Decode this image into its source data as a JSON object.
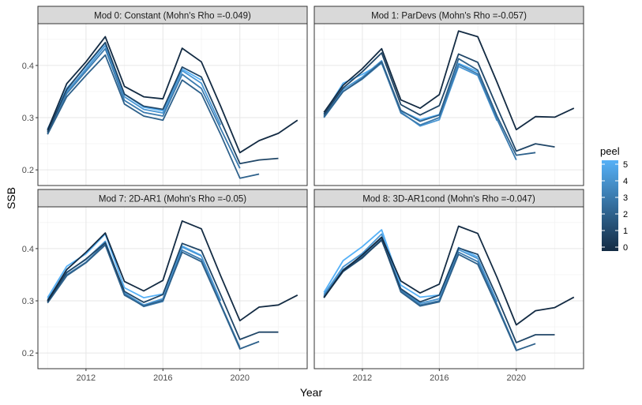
{
  "chart_data": {
    "type": "line",
    "xlabel": "Year",
    "ylabel": "SSB",
    "x_ticks": [
      2012,
      2016,
      2020
    ],
    "y_ticks": [
      0.2,
      0.3,
      0.4
    ],
    "xlim": [
      2009.5,
      2023.5
    ],
    "ylim": [
      0.17,
      0.48
    ],
    "grid": true,
    "legend": {
      "title": "peel",
      "position": "right",
      "ticks": [
        0,
        1,
        2,
        3,
        4,
        5
      ],
      "color_low": "#132B43",
      "color_high": "#56B1F7"
    },
    "panels": [
      {
        "title": "Mod 0: Constant (Mohn's Rho =-0.049)",
        "series": [
          {
            "peel": 0,
            "x": [
              2010,
              2011,
              2012,
              2013,
              2014,
              2015,
              2016,
              2017,
              2018,
              2019,
              2020,
              2021,
              2022,
              2023
            ],
            "y": [
              0.276,
              0.365,
              0.407,
              0.455,
              0.36,
              0.34,
              0.336,
              0.433,
              0.407,
              0.322,
              0.233,
              0.256,
              0.27,
              0.295
            ]
          },
          {
            "peel": 1,
            "x": [
              2010,
              2011,
              2012,
              2013,
              2014,
              2015,
              2016,
              2017,
              2018,
              2019,
              2020,
              2021,
              2022
            ],
            "y": [
              0.272,
              0.354,
              0.4,
              0.444,
              0.345,
              0.322,
              0.316,
              0.397,
              0.378,
              0.295,
              0.212,
              0.219,
              0.222
            ]
          },
          {
            "peel": 2,
            "x": [
              2010,
              2011,
              2012,
              2013,
              2014,
              2015,
              2016,
              2017,
              2018,
              2019,
              2020,
              2021
            ],
            "y": [
              0.268,
              0.34,
              0.381,
              0.42,
              0.326,
              0.303,
              0.295,
              0.372,
              0.346,
              0.268,
              0.184,
              0.192
            ]
          },
          {
            "peel": 3,
            "x": [
              2010,
              2011,
              2012,
              2013,
              2014,
              2015,
              2016,
              2017,
              2018,
              2019,
              2020
            ],
            "y": [
              0.27,
              0.346,
              0.389,
              0.432,
              0.333,
              0.31,
              0.303,
              0.383,
              0.356,
              0.279,
              0.203
            ]
          },
          {
            "peel": 4,
            "x": [
              2010,
              2011,
              2012,
              2013,
              2014,
              2015,
              2016,
              2017,
              2018,
              2019
            ],
            "y": [
              0.274,
              0.35,
              0.393,
              0.438,
              0.34,
              0.316,
              0.309,
              0.39,
              0.366,
              0.286
            ]
          },
          {
            "peel": 5,
            "x": [
              2010,
              2011,
              2012,
              2013,
              2014,
              2015,
              2016,
              2017,
              2018
            ],
            "y": [
              0.278,
              0.356,
              0.398,
              0.443,
              0.345,
              0.32,
              0.313,
              0.393,
              0.372
            ]
          }
        ]
      },
      {
        "title": "Mod 1: ParDevs (Mohn's Rho =-0.057)",
        "series": [
          {
            "peel": 0,
            "x": [
              2010,
              2011,
              2012,
              2013,
              2014,
              2015,
              2016,
              2017,
              2018,
              2019,
              2020,
              2021,
              2022,
              2023
            ],
            "y": [
              0.31,
              0.362,
              0.394,
              0.432,
              0.334,
              0.318,
              0.344,
              0.466,
              0.455,
              0.368,
              0.277,
              0.302,
              0.301,
              0.318
            ]
          },
          {
            "peel": 1,
            "x": [
              2010,
              2011,
              2012,
              2013,
              2014,
              2015,
              2016,
              2017,
              2018,
              2019,
              2020,
              2021,
              2022
            ],
            "y": [
              0.306,
              0.357,
              0.388,
              0.424,
              0.325,
              0.305,
              0.323,
              0.422,
              0.406,
              0.32,
              0.236,
              0.25,
              0.244
            ]
          },
          {
            "peel": 2,
            "x": [
              2010,
              2011,
              2012,
              2013,
              2014,
              2015,
              2016,
              2017,
              2018,
              2019,
              2020,
              2021
            ],
            "y": [
              0.302,
              0.35,
              0.375,
              0.407,
              0.314,
              0.293,
              0.305,
              0.413,
              0.391,
              0.303,
              0.228,
              0.233
            ]
          },
          {
            "peel": 3,
            "x": [
              2010,
              2011,
              2012,
              2013,
              2014,
              2015,
              2016,
              2017,
              2018,
              2019,
              2020
            ],
            "y": [
              0.3,
              0.35,
              0.374,
              0.405,
              0.309,
              0.286,
              0.3,
              0.402,
              0.384,
              0.297,
              0.219
            ]
          },
          {
            "peel": 4,
            "x": [
              2010,
              2011,
              2012,
              2013,
              2014,
              2015,
              2016,
              2017,
              2018,
              2019
            ],
            "y": [
              0.303,
              0.354,
              0.378,
              0.409,
              0.311,
              0.284,
              0.296,
              0.398,
              0.381,
              0.294
            ]
          },
          {
            "peel": 5,
            "x": [
              2010,
              2011,
              2012,
              2013,
              2014,
              2015,
              2016,
              2017,
              2018
            ],
            "y": [
              0.307,
              0.366,
              0.383,
              0.404,
              0.313,
              0.296,
              0.306,
              0.404,
              0.388
            ]
          }
        ]
      },
      {
        "title": "Mod 7: 2D-AR1 (Mohn's Rho =-0.05)",
        "series": [
          {
            "peel": 0,
            "x": [
              2010,
              2011,
              2012,
              2013,
              2014,
              2015,
              2016,
              2017,
              2018,
              2019,
              2020,
              2021,
              2022,
              2023
            ],
            "y": [
              0.3,
              0.36,
              0.393,
              0.43,
              0.337,
              0.319,
              0.339,
              0.453,
              0.438,
              0.348,
              0.262,
              0.288,
              0.292,
              0.311
            ]
          },
          {
            "peel": 1,
            "x": [
              2010,
              2011,
              2012,
              2013,
              2014,
              2015,
              2016,
              2017,
              2018,
              2019,
              2020,
              2021,
              2022
            ],
            "y": [
              0.298,
              0.354,
              0.38,
              0.411,
              0.318,
              0.297,
              0.312,
              0.41,
              0.396,
              0.312,
              0.226,
              0.24,
              0.24
            ]
          },
          {
            "peel": 2,
            "x": [
              2010,
              2011,
              2012,
              2013,
              2014,
              2015,
              2016,
              2017,
              2018,
              2019,
              2020,
              2021
            ],
            "y": [
              0.296,
              0.348,
              0.373,
              0.407,
              0.311,
              0.29,
              0.301,
              0.393,
              0.375,
              0.292,
              0.208,
              0.222
            ]
          },
          {
            "peel": 3,
            "x": [
              2010,
              2011,
              2012,
              2013,
              2014,
              2015,
              2016,
              2017,
              2018,
              2019,
              2020
            ],
            "y": [
              0.298,
              0.35,
              0.374,
              0.41,
              0.313,
              0.289,
              0.299,
              0.397,
              0.379,
              0.294,
              0.211
            ]
          },
          {
            "peel": 4,
            "x": [
              2010,
              2011,
              2012,
              2013,
              2014,
              2015,
              2016,
              2017,
              2018,
              2019
            ],
            "y": [
              0.302,
              0.355,
              0.379,
              0.414,
              0.315,
              0.292,
              0.304,
              0.403,
              0.386,
              0.3
            ]
          },
          {
            "peel": 5,
            "x": [
              2010,
              2011,
              2012,
              2013,
              2014,
              2015,
              2016,
              2017,
              2018
            ],
            "y": [
              0.306,
              0.366,
              0.39,
              0.428,
              0.325,
              0.306,
              0.313,
              0.405,
              0.387
            ]
          }
        ]
      },
      {
        "title": "Mod 8: 3D-AR1cond (Mohn's Rho =-0.047)",
        "series": [
          {
            "peel": 0,
            "x": [
              2010,
              2011,
              2012,
              2013,
              2014,
              2015,
              2016,
              2017,
              2018,
              2019,
              2020,
              2021,
              2022,
              2023
            ],
            "y": [
              0.306,
              0.358,
              0.388,
              0.422,
              0.338,
              0.315,
              0.332,
              0.443,
              0.429,
              0.345,
              0.254,
              0.281,
              0.287,
              0.307
            ]
          },
          {
            "peel": 1,
            "x": [
              2010,
              2011,
              2012,
              2013,
              2014,
              2015,
              2016,
              2017,
              2018,
              2019,
              2020,
              2021,
              2022
            ],
            "y": [
              0.306,
              0.357,
              0.383,
              0.416,
              0.323,
              0.298,
              0.311,
              0.401,
              0.389,
              0.307,
              0.22,
              0.235,
              0.235
            ]
          },
          {
            "peel": 2,
            "x": [
              2010,
              2011,
              2012,
              2013,
              2014,
              2015,
              2016,
              2017,
              2018,
              2019,
              2020,
              2021
            ],
            "y": [
              0.307,
              0.356,
              0.382,
              0.418,
              0.317,
              0.29,
              0.298,
              0.389,
              0.37,
              0.289,
              0.205,
              0.218
            ]
          },
          {
            "peel": 3,
            "x": [
              2010,
              2011,
              2012,
              2013,
              2014,
              2015,
              2016,
              2017,
              2018,
              2019,
              2020
            ],
            "y": [
              0.309,
              0.36,
              0.386,
              0.422,
              0.32,
              0.292,
              0.3,
              0.393,
              0.375,
              0.293,
              0.207
            ]
          },
          {
            "peel": 4,
            "x": [
              2010,
              2011,
              2012,
              2013,
              2014,
              2015,
              2016,
              2017,
              2018,
              2019
            ],
            "y": [
              0.312,
              0.365,
              0.391,
              0.428,
              0.322,
              0.295,
              0.304,
              0.398,
              0.381,
              0.298
            ]
          },
          {
            "peel": 5,
            "x": [
              2010,
              2011,
              2012,
              2013,
              2014,
              2015,
              2016,
              2017,
              2018
            ],
            "y": [
              0.316,
              0.377,
              0.404,
              0.436,
              0.33,
              0.307,
              0.311,
              0.402,
              0.384
            ]
          }
        ]
      }
    ]
  }
}
